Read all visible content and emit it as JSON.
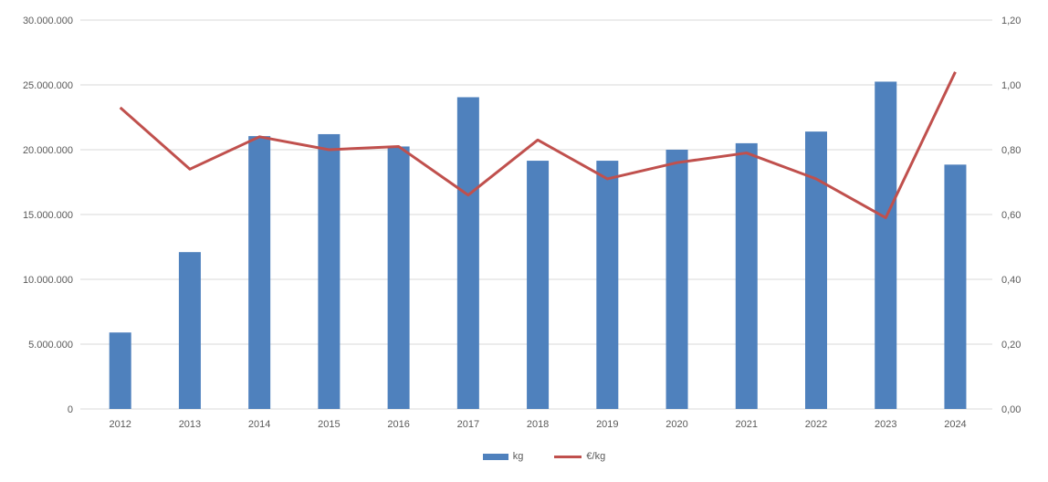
{
  "chart_data": {
    "type": "bar+line combo",
    "title": "",
    "categories": [
      "2012",
      "2013",
      "2014",
      "2015",
      "2016",
      "2017",
      "2018",
      "2019",
      "2020",
      "2021",
      "2022",
      "2023",
      "2024"
    ],
    "series": [
      {
        "name": "kg",
        "type": "bar",
        "axis": "left",
        "color": "#4F81BD",
        "values": [
          5900000,
          12100000,
          21050000,
          21200000,
          20250000,
          24050000,
          19150000,
          19150000,
          20000000,
          20500000,
          21400000,
          25250000,
          18850000
        ]
      },
      {
        "name": "€/kg",
        "type": "line",
        "axis": "right",
        "color": "#C0504D",
        "values": [
          0.93,
          0.74,
          0.84,
          0.8,
          0.81,
          0.66,
          0.83,
          0.71,
          0.76,
          0.79,
          0.71,
          0.59,
          1.04
        ]
      }
    ],
    "left_axis": {
      "min": 0,
      "max": 30000000,
      "step": 5000000,
      "tick_labels": [
        "0",
        "5.000.000",
        "10.000.000",
        "15.000.000",
        "20.000.000",
        "25.000.000",
        "30.000.000"
      ]
    },
    "right_axis": {
      "min": 0,
      "max": 1.2,
      "step": 0.2,
      "tick_labels": [
        "0,00",
        "0,20",
        "0,40",
        "0,60",
        "0,80",
        "1,00",
        "1,20"
      ]
    },
    "grid": true,
    "gridline_color": "#D9D9D9",
    "label_color": "#595959",
    "legend_position": "bottom",
    "legend": [
      {
        "label": "kg",
        "swatch": "bar",
        "color": "#4F81BD"
      },
      {
        "label": "€/kg",
        "swatch": "line",
        "color": "#C0504D"
      }
    ]
  }
}
